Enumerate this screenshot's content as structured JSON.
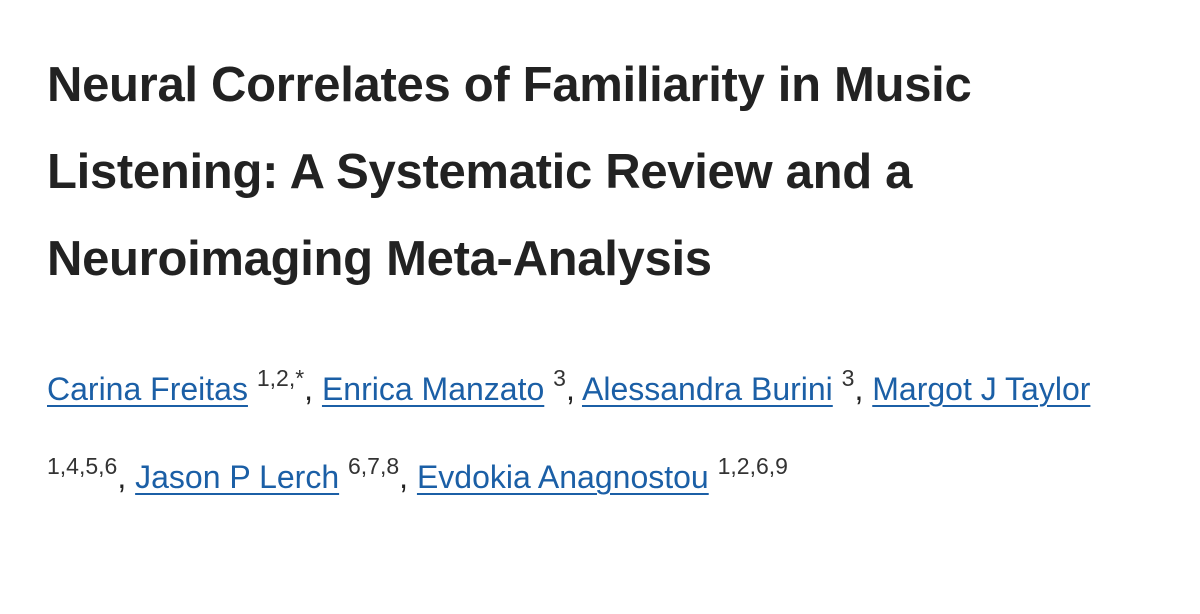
{
  "title": "Neural Correlates of Familiarity in Music Listening: A Systematic Review and a Neuroimaging Meta-Analysis",
  "separator": ",",
  "authors": [
    {
      "name": "Carina Freitas",
      "affiliations": "1,2,*"
    },
    {
      "name": "Enrica Manzato",
      "affiliations": "3"
    },
    {
      "name": "Alessandra Burini",
      "affiliations": "3"
    },
    {
      "name": "Margot J Taylor",
      "affiliations": "1,4,5,6"
    },
    {
      "name": "Jason P Lerch",
      "affiliations": "6,7,8"
    },
    {
      "name": "Evdokia Anagnostou",
      "affiliations": "1,2,6,9"
    }
  ]
}
